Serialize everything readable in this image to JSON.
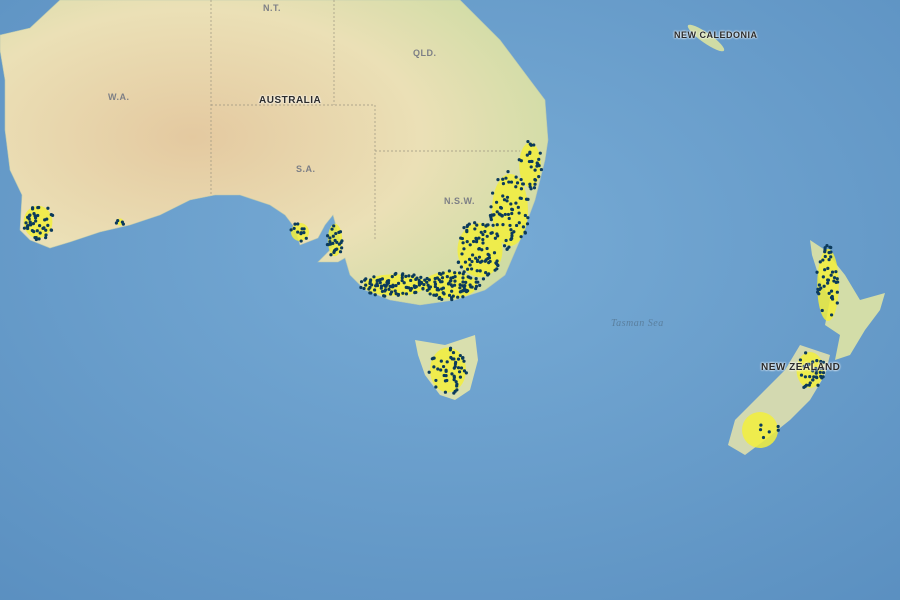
{
  "map": {
    "colors": {
      "ocean": "#6fa3cf",
      "ocean_deep": "#5d93c4",
      "land": "#eadfb4",
      "land_desert": "#e2c79d",
      "land_green": "#c9dba0",
      "occurrence_fill": "#f2ee3c",
      "occurrence_point": "#0b3a5c",
      "state_border": "#9a9480"
    },
    "labels": {
      "nt": "N.T.",
      "qld": "QLD.",
      "wa": "W.A.",
      "australia": "AUSTRALIA",
      "sa": "S.A.",
      "nsw": "N.S.W.",
      "new_caledonia": "NEW CALEDONIA",
      "tasman_sea": "Tasman Sea",
      "new_zealand": "NEW ZEALAND"
    }
  }
}
